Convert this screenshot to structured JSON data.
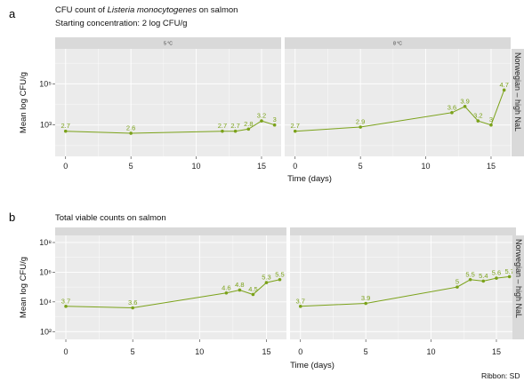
{
  "colors": {
    "series": "#7ba21a",
    "panel_bg": "#ebebeb",
    "grid": "#ffffff",
    "strip_bg": "#d9d9d9"
  },
  "caption": "Ribbon: SD",
  "chart_data": [
    {
      "type": "line",
      "panel_letter": "a",
      "title_prefix": "CFU count of ",
      "title_italic": "Listeria monocytogenes",
      "title_suffix": " on salmon",
      "subtitle": "Starting concentration: 2 log CFU/g",
      "xlabel": "Time (days)",
      "ylabel": "Mean log CFU/g",
      "row_strip": "Norwegian – high NaL",
      "y_scale": "log10",
      "ylim": [
        30,
        5000000
      ],
      "y_ticks": [
        1000,
        100000
      ],
      "y_tick_labels": [
        "10³",
        "10⁵"
      ],
      "xlim": [
        -0.8,
        16.5
      ],
      "x_ticks": [
        0,
        5,
        10,
        15
      ],
      "grid": true,
      "facets": [
        {
          "strip": "5 °C",
          "x": [
            0,
            5,
            12,
            13,
            14,
            15,
            16
          ],
          "y": [
            500,
            398,
            501,
            501,
            631,
            1585,
            1000
          ],
          "labels": [
            "2.7",
            "2.6",
            "2.7",
            "2.7",
            "2.8",
            "3.2",
            "3"
          ]
        },
        {
          "strip": "8 °C",
          "x": [
            0,
            5,
            12,
            13,
            14,
            15,
            16
          ],
          "y": [
            500,
            794,
            3981,
            7943,
            1585,
            1000,
            50119
          ],
          "labels": [
            "2.7",
            "2.9",
            "3.6",
            "3.9",
            "3.2",
            "3",
            "4.7"
          ]
        }
      ]
    },
    {
      "type": "line",
      "panel_letter": "b",
      "title": "Total viable counts on salmon",
      "xlabel": "Time (days)",
      "ylabel": "Mean log CFU/g",
      "row_strip": "Norwegian – high NaL",
      "y_scale": "log10",
      "ylim": [
        30,
        300000000
      ],
      "y_ticks": [
        100,
        10000,
        1000000,
        100000000
      ],
      "y_tick_labels": [
        "10²",
        "10⁴",
        "10⁶",
        "10⁸"
      ],
      "xlim": [
        -0.8,
        16.5
      ],
      "x_ticks": [
        0,
        5,
        10,
        15
      ],
      "grid": true,
      "facets": [
        {
          "strip": "",
          "x": [
            0,
            5,
            12,
            13,
            14,
            15,
            16
          ],
          "y": [
            5012,
            3981,
            39811,
            63096,
            31623,
            199526,
            316228
          ],
          "labels": [
            "3.7",
            "3.6",
            "4.6",
            "4.8",
            "4.5",
            "5.3",
            "5.5"
          ]
        },
        {
          "strip": "",
          "x": [
            0,
            5,
            12,
            13,
            14,
            15,
            16
          ],
          "y": [
            5012,
            7943,
            100000,
            316228,
            251189,
            398107,
            501187
          ],
          "labels": [
            "3.7",
            "3.9",
            "5",
            "5.5",
            "5.4",
            "5.6",
            "5.7"
          ]
        }
      ]
    }
  ]
}
